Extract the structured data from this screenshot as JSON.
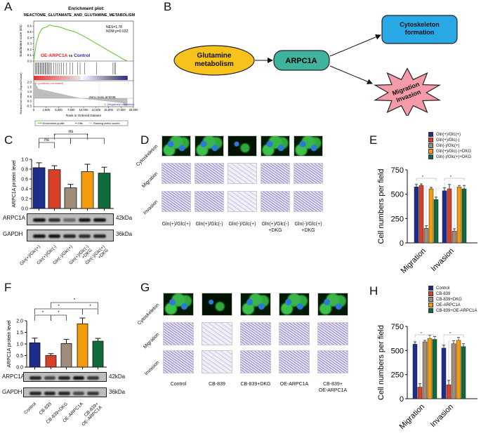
{
  "panels": {
    "a": "A",
    "b": "B",
    "c": "C",
    "d": "D",
    "e": "E",
    "f": "F",
    "g": "G",
    "h": "H"
  },
  "colors": {
    "blue": "#1e2d8c",
    "red": "#d8402a",
    "tan": "#a18b79",
    "orange": "#f29b0c",
    "green": "#0f6b3b",
    "es_line": "#5ec22b"
  },
  "gsea": {
    "title": "Enrichment plot:",
    "subtitle": "REACTOME_GLUTAMATE_AND_GLUTAMINE_METABOLISM",
    "nes": "NES=1.78",
    "pval": "NOM p=0.032",
    "comparison_a": "OE-ARPC1A",
    "comparison_vs": "vs",
    "comparison_b": "Control",
    "ylabel_es": "Enrichment score (ES)",
    "ylabel_rank": "Ranked list metric (Signal2Noise)",
    "xlabel": "Rank in Ordered Dataset",
    "pos_label": "'H' (positively correlated)",
    "neg_label": "'L' (Negatively correlated)",
    "zero_cross": "Zero cross at 9238",
    "es_ticks": [
      "0.0",
      "0.1",
      "0.2",
      "0.3",
      "0.4",
      "0.5",
      "0.6"
    ],
    "rank_ticks": [
      "2.0",
      "1.5",
      "1.0",
      "0.5",
      "0.0",
      "-0.5"
    ],
    "x_ticks": [
      "0",
      "2,500",
      "5,000",
      "7,500",
      "10,000",
      "12,500",
      "15,000",
      "17,500",
      "20,000"
    ],
    "legend": [
      "Enrichment profile",
      "Hits",
      "Ranking metric scores"
    ]
  },
  "diagram": {
    "source": "Glutamine metabolism",
    "hub": "ARPC1A",
    "target1": "Cytoskeleton formation",
    "target2": "Migration Invasion"
  },
  "panel_d": {
    "rows": [
      "Cytoskeleton",
      "Migration",
      "Invasion"
    ],
    "cols": [
      "Gln(+)/Glc(+)",
      "Gln(+)/Glc(-)",
      "Gln(-)/Glc(+)",
      "Gln(+)/Glc(-)\n+DKG",
      "Gln(-)/Glc(+)\n+DKG"
    ]
  },
  "panel_g": {
    "rows": [
      "Cytoskeleton",
      "Migration",
      "Invasion"
    ],
    "cols": [
      "Control",
      "CB-839",
      "CB-839+DKG",
      "OE-ARPC1A",
      "CB-839+\nOE-ARPC1A"
    ]
  },
  "blots": {
    "c": {
      "bands": [
        "ARPC1A",
        "GAPDH"
      ],
      "sizes": [
        "42kDa",
        "36kDa"
      ],
      "lanes": [
        "Gln(+)/Glc(+)",
        "Gln(+)/Glc(-)",
        "Gln(-)/Glc(+)",
        "Gln(+)/Glc(-)\n+DKG",
        "Gln(-)/Glc(+)\n+DKG"
      ]
    },
    "f": {
      "bands": [
        "ARPC1A",
        "GAPDH"
      ],
      "sizes": [
        "42kDa",
        "36kDa"
      ],
      "lanes": [
        "Control",
        "CB-839",
        "CB-839+DKG",
        "OE-ARPC1A",
        "CB-839+\nOE-ARPC1A"
      ]
    }
  },
  "chart_data": [
    {
      "id": "gsea",
      "type": "line",
      "title": "Enrichment plot: REACTOME_GLUTAMATE_AND_GLUTAMINE_METABOLISM",
      "xlabel": "Rank in Ordered Dataset",
      "ylabel": "Enrichment score (ES)",
      "xlim": [
        0,
        20000
      ],
      "ylim": [
        0,
        0.65
      ],
      "x": [
        0,
        500,
        1000,
        1500,
        2000,
        2500,
        3200,
        4000,
        5000,
        6000,
        7000,
        8000,
        9000,
        10000,
        11000,
        12000,
        13000,
        14000,
        15000,
        16000,
        17000,
        18000,
        18800
      ],
      "y": [
        0,
        0.3,
        0.45,
        0.54,
        0.57,
        0.58,
        0.62,
        0.6,
        0.59,
        0.56,
        0.53,
        0.51,
        0.47,
        0.43,
        0.38,
        0.33,
        0.28,
        0.23,
        0.18,
        0.13,
        0.08,
        0.03,
        0
      ],
      "hits": [
        300,
        500,
        700,
        900,
        1100,
        1300,
        1500,
        1700,
        1900,
        2100,
        2300,
        2500,
        2700,
        2900,
        3100,
        3300,
        3600,
        4000,
        4400,
        4800,
        5200,
        5600,
        6000,
        6600,
        7300,
        7800,
        8800,
        9300,
        10200,
        12600,
        15900,
        16200,
        16400
      ]
    },
    {
      "id": "c",
      "type": "bar",
      "ylabel": "ARPC1A protein level",
      "ylim": [
        0,
        1.0
      ],
      "yticks": [
        "0.0",
        "0.2",
        "0.4",
        "0.6",
        "0.8",
        "1.0"
      ],
      "categories": [
        "Gln(+)/Glc(+)",
        "Gln(+)/Glc(-)",
        "Gln(-)/Glc(+)",
        "Gln(+)/Glc(-)+DKG",
        "Gln(-)/Glc(+)+DKG"
      ],
      "values": [
        0.83,
        0.79,
        0.42,
        0.75,
        0.72
      ],
      "errors": [
        0.1,
        0.08,
        0.07,
        0.15,
        0.12
      ],
      "significance": [
        {
          "from": 0,
          "to": 1,
          "label": "ns",
          "level": 0
        },
        {
          "from": 0,
          "to": 2,
          "label": "*",
          "level": 1
        },
        {
          "from": 1,
          "to": 3,
          "label": "ns",
          "level": 2
        },
        {
          "from": 2,
          "to": 4,
          "label": "*",
          "level": 1
        }
      ]
    },
    {
      "id": "e",
      "type": "bar",
      "ylabel": "Cell numbers per field",
      "ylim": [
        0,
        750
      ],
      "yticks": [
        "0",
        "250",
        "500",
        "750"
      ],
      "categories": [
        "Migration",
        "Invasion"
      ],
      "series": [
        {
          "name": "Gln(+)/Glc(+)",
          "values": [
            575,
            535
          ],
          "errors": [
            25,
            30
          ]
        },
        {
          "name": "Gln(+)/Glc(-)",
          "values": [
            590,
            555
          ],
          "errors": [
            15,
            45
          ]
        },
        {
          "name": "Gln(-)/Glc(+)",
          "values": [
            150,
            120
          ],
          "errors": [
            25,
            25
          ]
        },
        {
          "name": "Gln(+)/Glc(-)+DKG",
          "values": [
            555,
            575
          ],
          "errors": [
            15,
            15
          ]
        },
        {
          "name": "Gln(-)/Glc(+)+DKG",
          "values": [
            445,
            555
          ],
          "errors": [
            25,
            35
          ]
        }
      ],
      "significance_label": "*"
    },
    {
      "id": "f",
      "type": "bar",
      "ylabel": "ARPC1A protein level",
      "ylim": [
        0,
        2.0
      ],
      "yticks": [
        "0.0",
        "0.5",
        "1.0",
        "1.5",
        "2.0"
      ],
      "categories": [
        "Control",
        "CB-839",
        "CB-839+DKG",
        "OE-ARPC1A",
        "CB-839+OE-ARPC1A"
      ],
      "values": [
        1.05,
        0.5,
        1.02,
        1.87,
        1.12
      ],
      "errors": [
        0.2,
        0.08,
        0.18,
        0.25,
        0.12
      ],
      "significance": [
        {
          "from": 0,
          "to": 1,
          "label": "*",
          "level": 0
        },
        {
          "from": 1,
          "to": 2,
          "label": "*",
          "level": 0
        },
        {
          "from": 0,
          "to": 3,
          "label": "*",
          "level": 1
        },
        {
          "from": 3,
          "to": 4,
          "label": "*",
          "level": 1
        },
        {
          "from": 1,
          "to": 4,
          "label": "*",
          "level": 2
        }
      ]
    },
    {
      "id": "h",
      "type": "bar",
      "ylabel": "Cell numbers per field",
      "ylim": [
        0,
        750
      ],
      "yticks": [
        "0",
        "250",
        "500",
        "750"
      ],
      "categories": [
        "Migration",
        "Invasion"
      ],
      "series": [
        {
          "name": "Control",
          "values": [
            565,
            525
          ],
          "errors": [
            25,
            30
          ]
        },
        {
          "name": "CB-839",
          "values": [
            120,
            145
          ],
          "errors": [
            35,
            45
          ]
        },
        {
          "name": "CB-839+DKG",
          "values": [
            590,
            570
          ],
          "errors": [
            15,
            30
          ]
        },
        {
          "name": "OE-ARPC1A",
          "values": [
            625,
            605
          ],
          "errors": [
            35,
            30
          ]
        },
        {
          "name": "CB-839+OE-ARPC1A",
          "values": [
            615,
            540
          ],
          "errors": [
            30,
            30
          ]
        }
      ],
      "significance_label": "*"
    }
  ]
}
